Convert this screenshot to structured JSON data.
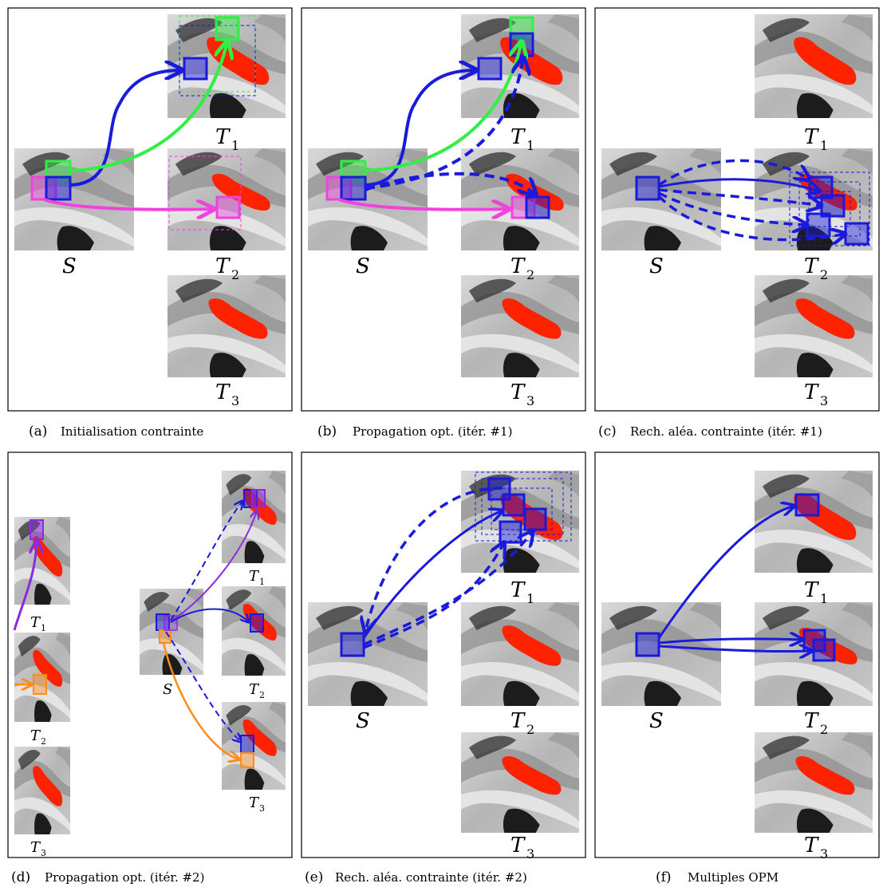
{
  "labels": {
    "source": "S",
    "t1_main": "T",
    "t1_sub": "1",
    "t2_main": "T",
    "t2_sub": "2",
    "t3_main": "T",
    "t3_sub": "3"
  },
  "captions": {
    "a_tag": "(a)",
    "a_text": "Initialisation contrainte",
    "b_tag": "(b)",
    "b_text": "Propagation opt. (itér. #1)",
    "c_tag": "(c)",
    "c_text": "Rech. aléa. contrainte (itér. #1)",
    "d_tag": "(d)",
    "d_text": "Propagation opt. (itér. #2)",
    "e_tag": "(e)",
    "e_text": "Rech. aléa. contrainte (itér. #2)",
    "f_tag": "(f)",
    "f_text": "Multiples OPM"
  },
  "colors": {
    "patch_blue": "#1a1adc",
    "patch_green": "#33ee44",
    "patch_magenta": "#ee44dd",
    "patch_purple": "#8a2be2",
    "patch_orange": "#ff8c1a",
    "segmentation_red": "#ff2200",
    "mri_gray": "#b8b8b8"
  }
}
